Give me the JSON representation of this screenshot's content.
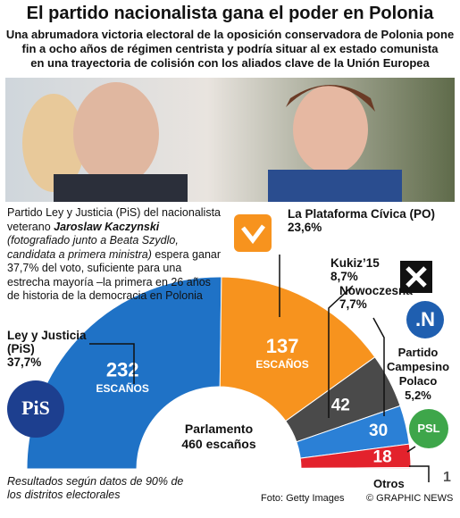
{
  "chart_data": {
    "type": "semicircle",
    "title": "El partido nacionalista gana el poder en Polonia",
    "subtitle": [
      "Una abrumadora victoria electoral de la oposición conservadora de Polonia pone",
      "fin a ocho años de régimen centrista y podría situar al ex estado comunista",
      "en una trayectoria de colisión con los aliados clave de la Unión Europea"
    ],
    "intro": {
      "lead": "Partido Ley y Justicia  (PiS) del nacionalista veterano ",
      "name": "Jaroslaw Kaczynski",
      "caption": " (fotografiado junto a Beata Szydlo, candidata a primera ministra)",
      "rest": " espera ganar 37,7% del voto, suficiente para una estrecha mayoría –la primera en 26 años de historia de la democracia en Polonia"
    },
    "categories": [
      "Ley y Justicia (PiS)",
      "La Plataforma Cívica (PO)",
      "Kukiz’15",
      "Nowoczesna",
      "Partido Campesino Polaco",
      "Otros"
    ],
    "vote_labels": [
      "37,7%",
      "23,6%",
      "8,7%",
      "7,7%",
      "5,2%",
      null
    ],
    "series": [
      {
        "name": "Escaños",
        "values": [
          232,
          137,
          42,
          30,
          18,
          1
        ],
        "colors": [
          "#1f72c6",
          "#f7931e",
          "#4a4a4a",
          "#2b80d6",
          "#e3222c",
          "#f5b8c4"
        ]
      }
    ],
    "seat_unit": "ESCAÑOS",
    "center_label": [
      "Parlamento",
      "460 escaños"
    ],
    "logos": [
      "PiS",
      ".N",
      "PSL"
    ],
    "note": "Resultados según datos de 90% de los distritos electorales",
    "credit": "Foto: Getty Images",
    "copyright": "© GRAPHIC NEWS"
  }
}
